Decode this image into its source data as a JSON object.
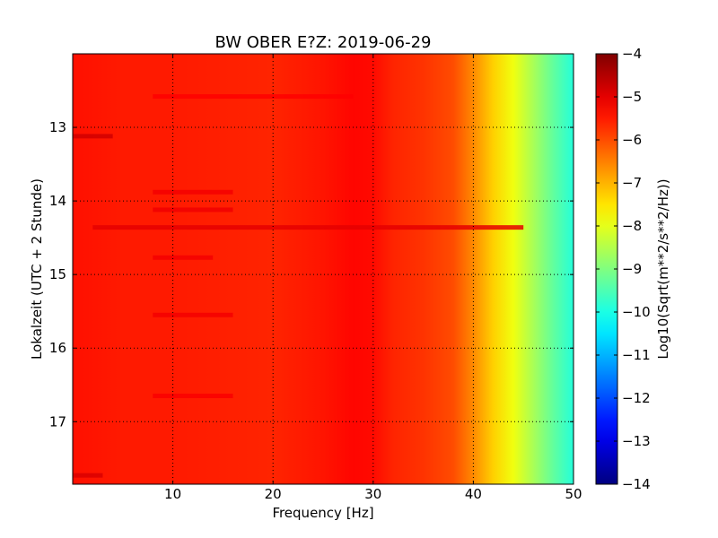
{
  "chart_data": {
    "type": "heatmap",
    "title": "BW OBER E?Z: 2019-06-29",
    "xlabel": "Frequency [Hz]",
    "ylabel": "Lokalzeit (UTC + 2 Stunde)",
    "xlim": [
      0,
      50
    ],
    "ylim": [
      12.0,
      17.85
    ],
    "y_inverted": true,
    "x_ticks": [
      10,
      20,
      30,
      40,
      50
    ],
    "x_tick_labels": [
      "10",
      "20",
      "30",
      "40",
      "50"
    ],
    "y_ticks": [
      13,
      14,
      15,
      16,
      17
    ],
    "y_tick_labels": [
      "13",
      "14",
      "15",
      "16",
      "17"
    ],
    "grid": true,
    "colorbar": {
      "label": "Log10(Sqrt(m**2/s**2/Hz))",
      "range": [
        -14,
        -4
      ],
      "ticks": [
        -4,
        -5,
        -6,
        -7,
        -8,
        -9,
        -10,
        -11,
        -12,
        -13,
        -14
      ],
      "tick_labels": [
        "−4",
        "−5",
        "−6",
        "−7",
        "−8",
        "−9",
        "−10",
        "−11",
        "−12",
        "−13",
        "−14"
      ],
      "colormap": "jet"
    },
    "frequency_profile": {
      "frequency_hz": [
        0,
        5,
        10,
        15,
        20,
        25,
        28,
        30,
        32,
        35,
        38,
        40,
        42,
        44,
        46,
        48,
        50
      ],
      "log10_amplitude": [
        -5.4,
        -5.5,
        -5.5,
        -5.55,
        -5.6,
        -5.45,
        -5.3,
        -5.35,
        -5.6,
        -5.75,
        -6.0,
        -6.6,
        -7.3,
        -7.9,
        -8.6,
        -9.3,
        -9.9
      ]
    },
    "horizontal_bands": [
      {
        "time": 13.12,
        "f_start": 0,
        "f_end": 4,
        "log10_amplitude": -4.8
      },
      {
        "time": 14.36,
        "f_start": 2,
        "f_end": 45,
        "log10_amplitude": -5.0
      },
      {
        "time": 14.12,
        "f_start": 8,
        "f_end": 16,
        "log10_amplitude": -5.1
      },
      {
        "time": 13.88,
        "f_start": 8,
        "f_end": 16,
        "log10_amplitude": -5.15
      },
      {
        "time": 14.77,
        "f_start": 8,
        "f_end": 14,
        "log10_amplitude": -5.15
      },
      {
        "time": 15.55,
        "f_start": 8,
        "f_end": 16,
        "log10_amplitude": -5.15
      },
      {
        "time": 16.65,
        "f_start": 8,
        "f_end": 16,
        "log10_amplitude": -5.2
      },
      {
        "time": 12.58,
        "f_start": 8,
        "f_end": 28,
        "log10_amplitude": -5.25
      },
      {
        "time": 17.73,
        "f_start": 0,
        "f_end": 3,
        "log10_amplitude": -4.9
      }
    ]
  }
}
